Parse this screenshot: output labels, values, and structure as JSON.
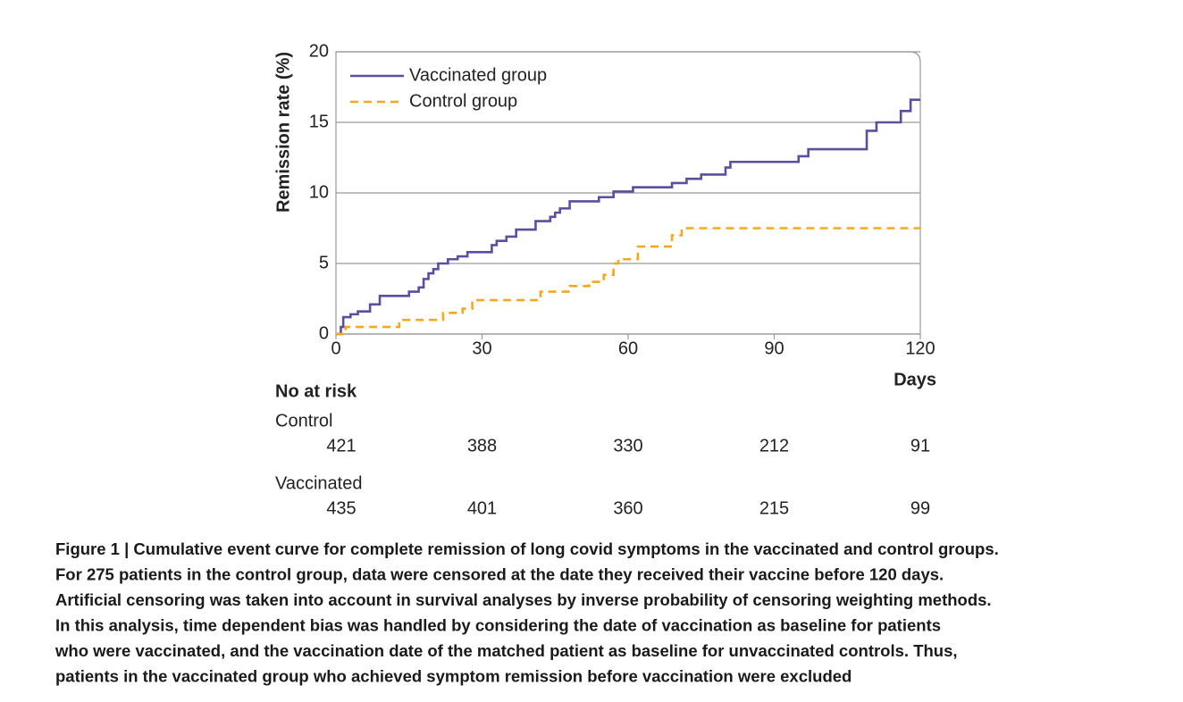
{
  "chart_data": {
    "type": "step",
    "y_label": "Remission rate (%)",
    "x_label": "Days",
    "xlim": [
      0,
      120
    ],
    "xticks": [
      0,
      30,
      60,
      90,
      120
    ],
    "ylim": [
      0,
      20
    ],
    "yticks": [
      0,
      5,
      10,
      15,
      20
    ],
    "grid": true,
    "legend": "upper-left",
    "series": [
      {
        "name": "Vaccinated group",
        "color": "#5b4ea0",
        "dash": false,
        "x": [
          0,
          1,
          1.5,
          3,
          4.5,
          7,
          9,
          15,
          17,
          18,
          19,
          20,
          21,
          23,
          25,
          27,
          32,
          33,
          35,
          37,
          41,
          44,
          45,
          46,
          48,
          54,
          57,
          61,
          69,
          72,
          75,
          80,
          81,
          95,
          97,
          109,
          111,
          116,
          118,
          120
        ],
        "values": [
          0,
          0.5,
          1.2,
          1.4,
          1.6,
          2.1,
          2.7,
          3.0,
          3.3,
          3.9,
          4.3,
          4.6,
          5.0,
          5.3,
          5.5,
          5.8,
          6.3,
          6.6,
          6.9,
          7.4,
          8.0,
          8.3,
          8.6,
          8.9,
          9.4,
          9.7,
          10.1,
          10.4,
          10.7,
          11.0,
          11.3,
          11.8,
          12.2,
          12.6,
          13.1,
          14.4,
          15.0,
          15.8,
          16.6,
          16.6
        ]
      },
      {
        "name": "Control group",
        "color": "#f5a81c",
        "dash": true,
        "x": [
          0,
          2,
          13,
          22,
          26,
          28,
          42,
          48,
          52,
          55,
          57,
          58,
          62,
          69,
          71,
          120
        ],
        "values": [
          0,
          0.5,
          1.0,
          1.5,
          1.8,
          2.4,
          3.0,
          3.4,
          3.7,
          4.2,
          5.0,
          5.3,
          6.2,
          7.0,
          7.5,
          7.5
        ]
      }
    ]
  },
  "risk_table": {
    "title": "No at risk",
    "rows": [
      {
        "name": "Control",
        "values": [
          421,
          388,
          330,
          212,
          91
        ]
      },
      {
        "name": "Vaccinated",
        "values": [
          435,
          401,
          360,
          215,
          99
        ]
      }
    ]
  },
  "caption": [
    "Figure 1 | Cumulative event curve for complete remission of long covid symptoms in the vaccinated and control groups.",
    "For 275 patients in the control group, data were censored at the date they received their vaccine before 120 days.",
    "Artificial censoring was taken into account in survival analyses by inverse probability of censoring weighting methods.",
    "In this analysis, time dependent bias was handled by considering the date of vaccination as baseline for patients",
    "who were vaccinated, and the vaccination date of the matched patient as baseline for unvaccinated controls. Thus,",
    "patients in the vaccinated group who achieved symptom remission before vaccination were excluded"
  ]
}
